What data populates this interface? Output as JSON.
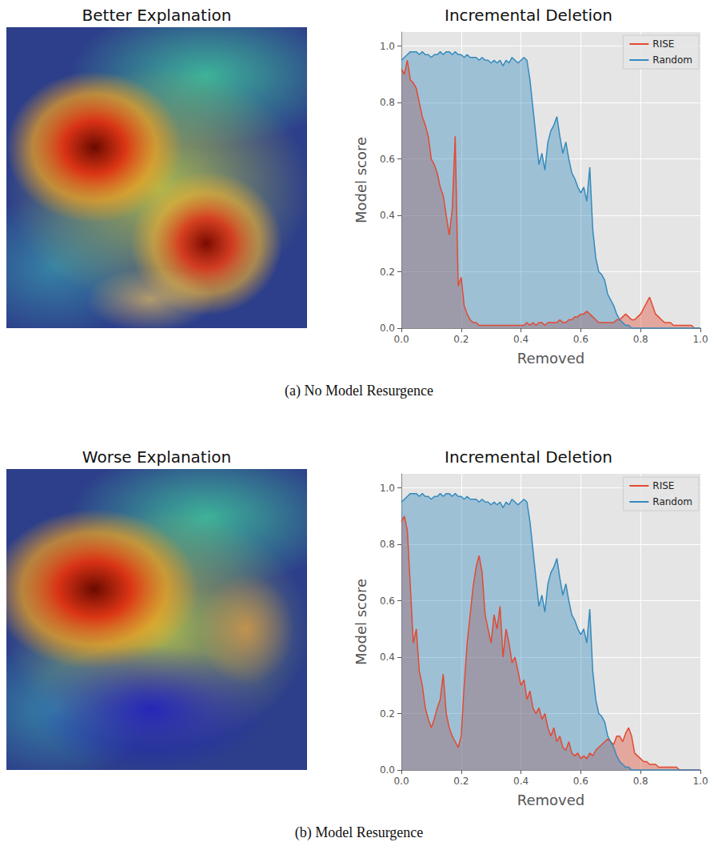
{
  "chart_data": [
    {
      "type": "area",
      "title": "Incremental Deletion",
      "x_label": "Removed",
      "y_label": "Model score",
      "x": [
        0,
        0.01,
        0.02,
        0.03,
        0.04,
        0.05,
        0.06,
        0.07,
        0.08,
        0.09,
        0.1,
        0.11,
        0.12,
        0.13,
        0.14,
        0.15,
        0.16,
        0.17,
        0.18,
        0.19,
        0.2,
        0.21,
        0.22,
        0.23,
        0.24,
        0.25,
        0.26,
        0.27,
        0.28,
        0.29,
        0.3,
        0.31,
        0.32,
        0.33,
        0.34,
        0.35,
        0.36,
        0.37,
        0.38,
        0.39,
        0.4,
        0.41,
        0.42,
        0.43,
        0.44,
        0.45,
        0.46,
        0.47,
        0.48,
        0.49,
        0.5,
        0.51,
        0.52,
        0.53,
        0.54,
        0.55,
        0.56,
        0.57,
        0.58,
        0.59,
        0.6,
        0.61,
        0.62,
        0.63,
        0.64,
        0.65,
        0.66,
        0.67,
        0.68,
        0.69,
        0.7,
        0.71,
        0.72,
        0.73,
        0.74,
        0.75,
        0.76,
        0.77,
        0.78,
        0.79,
        0.8,
        0.81,
        0.82,
        0.83,
        0.84,
        0.85,
        0.86,
        0.87,
        0.88,
        0.89,
        0.9,
        0.91,
        0.92,
        0.93,
        0.94,
        0.95,
        0.96,
        0.97,
        0.98,
        0.99,
        1
      ],
      "series": [
        {
          "name": "RISE",
          "color": "#e24a33",
          "values": [
            0.92,
            0.9,
            0.95,
            0.88,
            0.87,
            0.85,
            0.8,
            0.75,
            0.72,
            0.68,
            0.6,
            0.58,
            0.55,
            0.5,
            0.47,
            0.4,
            0.33,
            0.42,
            0.68,
            0.15,
            0.18,
            0.08,
            0.05,
            0.03,
            0.02,
            0.02,
            0.01,
            0.01,
            0.01,
            0.01,
            0.01,
            0.01,
            0.01,
            0.01,
            0.01,
            0.01,
            0.01,
            0.01,
            0.01,
            0.01,
            0.01,
            0.01,
            0.02,
            0.01,
            0.02,
            0.01,
            0.02,
            0.02,
            0.01,
            0.02,
            0.02,
            0.02,
            0.02,
            0.03,
            0.02,
            0.02,
            0.03,
            0.03,
            0.04,
            0.04,
            0.05,
            0.05,
            0.06,
            0.05,
            0.04,
            0.03,
            0.02,
            0.02,
            0.02,
            0.02,
            0.02,
            0.02,
            0.03,
            0.03,
            0.04,
            0.05,
            0.04,
            0.03,
            0.03,
            0.04,
            0.05,
            0.07,
            0.09,
            0.11,
            0.08,
            0.05,
            0.04,
            0.03,
            0.02,
            0.02,
            0.02,
            0.01,
            0.01,
            0.01,
            0.01,
            0.01,
            0.01,
            0.01,
            0,
            0,
            0
          ]
        },
        {
          "name": "Random",
          "color": "#348abd",
          "values": [
            0.95,
            0.96,
            0.97,
            0.98,
            0.98,
            0.98,
            0.97,
            0.98,
            0.97,
            0.97,
            0.96,
            0.97,
            0.97,
            0.98,
            0.97,
            0.98,
            0.98,
            0.97,
            0.98,
            0.97,
            0.97,
            0.96,
            0.97,
            0.96,
            0.96,
            0.96,
            0.95,
            0.96,
            0.95,
            0.95,
            0.94,
            0.95,
            0.94,
            0.95,
            0.93,
            0.95,
            0.94,
            0.96,
            0.95,
            0.94,
            0.95,
            0.96,
            0.95,
            0.88,
            0.78,
            0.68,
            0.58,
            0.62,
            0.56,
            0.66,
            0.7,
            0.72,
            0.75,
            0.68,
            0.62,
            0.66,
            0.6,
            0.55,
            0.53,
            0.5,
            0.48,
            0.5,
            0.45,
            0.57,
            0.35,
            0.25,
            0.2,
            0.19,
            0.17,
            0.12,
            0.1,
            0.08,
            0.05,
            0.03,
            0.02,
            0.01,
            0.01,
            0,
            0,
            0,
            0,
            0,
            0,
            0,
            0,
            0,
            0,
            0,
            0,
            0,
            0,
            0,
            0,
            0,
            0,
            0,
            0,
            0,
            0,
            0,
            0
          ]
        }
      ],
      "xlim": [
        0,
        1
      ],
      "ylim": [
        0,
        1.05
      ],
      "xticks": [
        {
          "value": 0,
          "label": "0.0"
        },
        {
          "value": 0.2,
          "label": "0.2"
        },
        {
          "value": 0.4,
          "label": "0.4"
        },
        {
          "value": 0.6,
          "label": "0.6"
        },
        {
          "value": 0.8,
          "label": "0.8"
        },
        {
          "value": 1,
          "label": "1.0"
        }
      ],
      "yticks": [
        {
          "value": 0,
          "label": "0.0"
        },
        {
          "value": 0.2,
          "label": "0.2"
        },
        {
          "value": 0.4,
          "label": "0.4"
        },
        {
          "value": 0.6,
          "label": "0.6"
        },
        {
          "value": 0.8,
          "label": "0.8"
        },
        {
          "value": 1,
          "label": "1.0"
        }
      ],
      "grid": true,
      "legend": "upper right"
    },
    {
      "type": "area",
      "title": "Incremental Deletion",
      "x_label": "Removed",
      "y_label": "Model score",
      "x": [
        0,
        0.01,
        0.02,
        0.03,
        0.04,
        0.05,
        0.06,
        0.07,
        0.08,
        0.09,
        0.1,
        0.11,
        0.12,
        0.13,
        0.14,
        0.15,
        0.16,
        0.17,
        0.18,
        0.19,
        0.2,
        0.21,
        0.22,
        0.23,
        0.24,
        0.25,
        0.26,
        0.27,
        0.28,
        0.29,
        0.3,
        0.31,
        0.32,
        0.33,
        0.34,
        0.35,
        0.36,
        0.37,
        0.38,
        0.39,
        0.4,
        0.41,
        0.42,
        0.43,
        0.44,
        0.45,
        0.46,
        0.47,
        0.48,
        0.49,
        0.5,
        0.51,
        0.52,
        0.53,
        0.54,
        0.55,
        0.56,
        0.57,
        0.58,
        0.59,
        0.6,
        0.61,
        0.62,
        0.63,
        0.64,
        0.65,
        0.66,
        0.67,
        0.68,
        0.69,
        0.7,
        0.71,
        0.72,
        0.73,
        0.74,
        0.75,
        0.76,
        0.77,
        0.78,
        0.79,
        0.8,
        0.81,
        0.82,
        0.83,
        0.84,
        0.85,
        0.86,
        0.87,
        0.88,
        0.89,
        0.9,
        0.91,
        0.92,
        0.93,
        0.94,
        0.95,
        0.96,
        0.97,
        0.98,
        0.99,
        1
      ],
      "series": [
        {
          "name": "RISE",
          "color": "#e24a33",
          "values": [
            0.88,
            0.9,
            0.85,
            0.65,
            0.45,
            0.5,
            0.35,
            0.3,
            0.22,
            0.18,
            0.15,
            0.18,
            0.22,
            0.25,
            0.34,
            0.2,
            0.15,
            0.12,
            0.1,
            0.08,
            0.12,
            0.3,
            0.45,
            0.55,
            0.65,
            0.72,
            0.76,
            0.7,
            0.55,
            0.5,
            0.45,
            0.55,
            0.5,
            0.58,
            0.4,
            0.5,
            0.45,
            0.38,
            0.4,
            0.35,
            0.3,
            0.32,
            0.25,
            0.28,
            0.22,
            0.2,
            0.22,
            0.18,
            0.2,
            0.15,
            0.12,
            0.15,
            0.1,
            0.12,
            0.08,
            0.07,
            0.1,
            0.06,
            0.05,
            0.06,
            0.04,
            0.05,
            0.04,
            0.06,
            0.05,
            0.07,
            0.08,
            0.09,
            0.1,
            0.11,
            0.1,
            0.09,
            0.12,
            0.12,
            0.1,
            0.13,
            0.15,
            0.12,
            0.06,
            0.05,
            0.04,
            0.03,
            0.03,
            0.02,
            0.02,
            0.02,
            0.01,
            0.01,
            0.01,
            0.01,
            0.01,
            0.01,
            0.01,
            0,
            0,
            0,
            0,
            0,
            0,
            0,
            0
          ]
        },
        {
          "name": "Random",
          "color": "#348abd",
          "values": [
            0.95,
            0.96,
            0.97,
            0.98,
            0.98,
            0.98,
            0.97,
            0.98,
            0.97,
            0.97,
            0.96,
            0.97,
            0.97,
            0.98,
            0.97,
            0.98,
            0.98,
            0.97,
            0.98,
            0.97,
            0.97,
            0.96,
            0.97,
            0.96,
            0.96,
            0.96,
            0.95,
            0.96,
            0.95,
            0.95,
            0.94,
            0.95,
            0.94,
            0.95,
            0.93,
            0.95,
            0.94,
            0.96,
            0.95,
            0.94,
            0.95,
            0.96,
            0.95,
            0.88,
            0.78,
            0.68,
            0.58,
            0.62,
            0.56,
            0.66,
            0.7,
            0.72,
            0.75,
            0.68,
            0.62,
            0.66,
            0.6,
            0.55,
            0.53,
            0.5,
            0.48,
            0.5,
            0.45,
            0.57,
            0.35,
            0.25,
            0.2,
            0.19,
            0.17,
            0.12,
            0.1,
            0.08,
            0.05,
            0.03,
            0.02,
            0.01,
            0.01,
            0,
            0,
            0,
            0,
            0,
            0,
            0,
            0,
            0,
            0,
            0,
            0,
            0,
            0,
            0,
            0,
            0,
            0,
            0,
            0,
            0,
            0,
            0,
            0
          ]
        }
      ],
      "xlim": [
        0,
        1
      ],
      "ylim": [
        0,
        1.05
      ],
      "xticks": [
        {
          "value": 0,
          "label": "0.0"
        },
        {
          "value": 0.2,
          "label": "0.2"
        },
        {
          "value": 0.4,
          "label": "0.4"
        },
        {
          "value": 0.6,
          "label": "0.6"
        },
        {
          "value": 0.8,
          "label": "0.8"
        },
        {
          "value": 1,
          "label": "1.0"
        }
      ],
      "yticks": [
        {
          "value": 0,
          "label": "0.0"
        },
        {
          "value": 0.2,
          "label": "0.2"
        },
        {
          "value": 0.4,
          "label": "0.4"
        },
        {
          "value": 0.6,
          "label": "0.6"
        },
        {
          "value": 0.8,
          "label": "0.8"
        },
        {
          "value": 1,
          "label": "1.0"
        }
      ],
      "grid": true,
      "legend": "upper right"
    }
  ],
  "images": [
    {
      "title": "Better Explanation"
    },
    {
      "title": "Worse Explanation"
    }
  ],
  "captions": [
    "(a) No Model Resurgence",
    "(b) Model Resurgence"
  ]
}
